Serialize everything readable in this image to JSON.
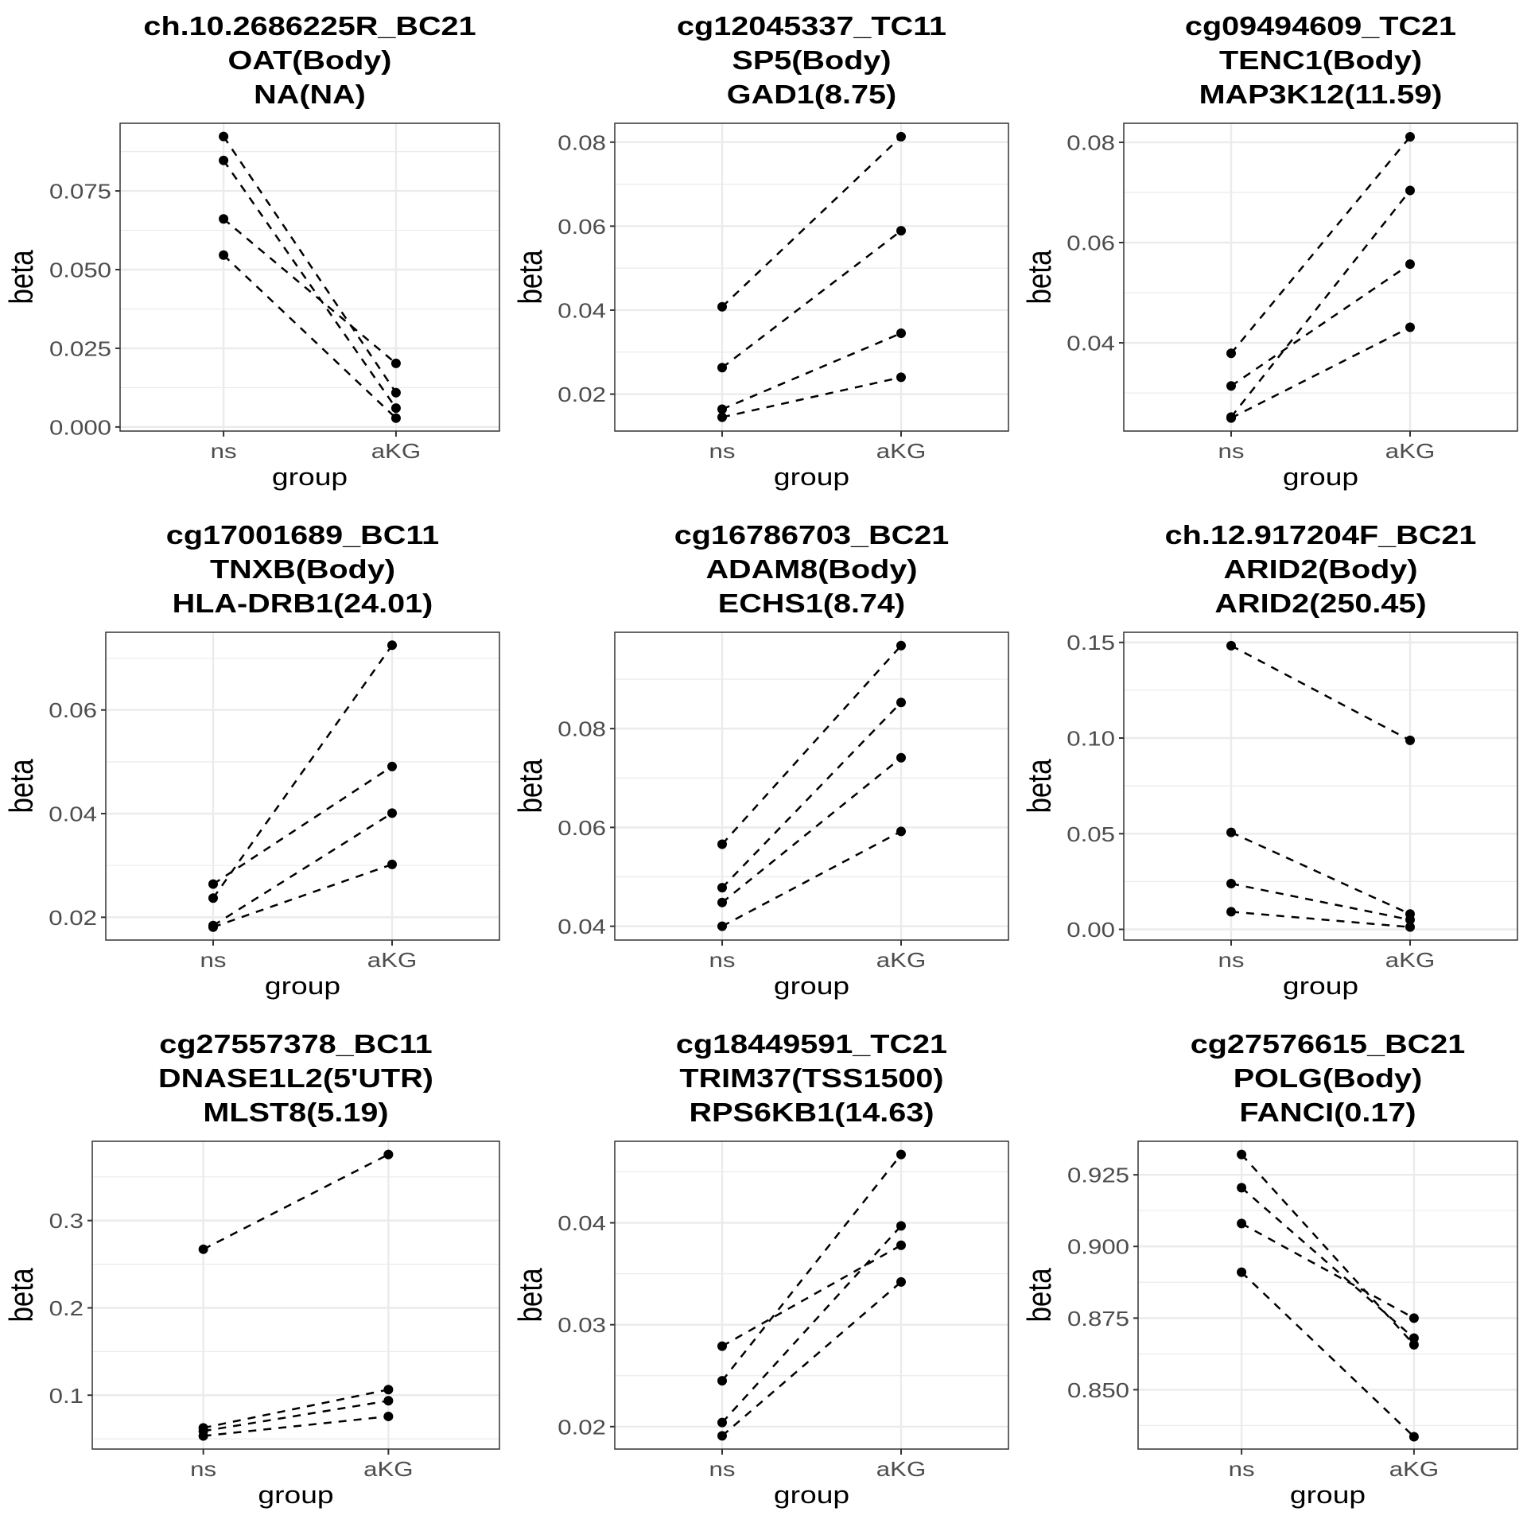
{
  "figure": {
    "style": {
      "point_color": "#000000",
      "line_color": "#000000",
      "grid_color": "#EBEBEB",
      "frame_color": "#333333",
      "tick_label_color": "#4D4D4D"
    }
  },
  "chart_data": [
    {
      "type": "line",
      "title": [
        "ch.10.2686225R_BC21",
        "OAT(Body)",
        "NA(NA)"
      ],
      "xlabel": "group",
      "ylabel": "beta",
      "categories": [
        "ns",
        "aKG"
      ],
      "ylim": [
        -0.0013,
        0.0965
      ],
      "yticks": [
        0,
        0.025,
        0.05,
        0.075
      ],
      "ytick_labels": [
        "0.000",
        "0.025",
        "0.050",
        "0.075"
      ],
      "grid": true,
      "series": [
        {
          "values": [
            0.0923,
            0.0109
          ]
        },
        {
          "values": [
            0.0847,
            0.006
          ]
        },
        {
          "values": [
            0.0661,
            0.0202
          ]
        },
        {
          "values": [
            0.0546,
            0.0028
          ]
        }
      ]
    },
    {
      "type": "line",
      "title": [
        "cg12045337_TC11",
        "SP5(Body)",
        "GAD1(8.75)"
      ],
      "xlabel": "group",
      "ylabel": "beta",
      "categories": [
        "ns",
        "aKG"
      ],
      "ylim": [
        0.0112,
        0.0845
      ],
      "yticks": [
        0.02,
        0.04,
        0.06,
        0.08
      ],
      "ytick_labels": [
        "0.02",
        "0.04",
        "0.06",
        "0.08"
      ],
      "grid": true,
      "series": [
        {
          "values": [
            0.0408,
            0.0813
          ]
        },
        {
          "values": [
            0.0263,
            0.0589
          ]
        },
        {
          "values": [
            0.0164,
            0.0345
          ]
        },
        {
          "values": [
            0.0145,
            0.024
          ]
        }
      ]
    },
    {
      "type": "line",
      "title": [
        "cg09494609_TC21",
        "TENC1(Body)",
        "MAP3K12(11.59)"
      ],
      "xlabel": "group",
      "ylabel": "beta",
      "categories": [
        "ns",
        "aKG"
      ],
      "ylim": [
        0.0224,
        0.0838
      ],
      "yticks": [
        0.04,
        0.06,
        0.08
      ],
      "ytick_labels": [
        "0.04",
        "0.06",
        "0.08"
      ],
      "grid": true,
      "series": [
        {
          "values": [
            0.0379,
            0.0811
          ]
        },
        {
          "values": [
            0.0314,
            0.0557
          ]
        },
        {
          "values": [
            0.0252,
            0.0704
          ]
        },
        {
          "values": [
            0.025,
            0.0431
          ]
        }
      ]
    },
    {
      "type": "line",
      "title": [
        "cg17001689_BC11",
        "TNXB(Body)",
        "HLA-DRB1(24.01)"
      ],
      "xlabel": "group",
      "ylabel": "beta",
      "categories": [
        "ns",
        "aKG"
      ],
      "ylim": [
        0.0156,
        0.075
      ],
      "yticks": [
        0.02,
        0.04,
        0.06
      ],
      "ytick_labels": [
        "0.02",
        "0.04",
        "0.06"
      ],
      "grid": true,
      "series": [
        {
          "values": [
            0.0237,
            0.0725
          ]
        },
        {
          "values": [
            0.0264,
            0.0491
          ]
        },
        {
          "values": [
            0.0184,
            0.0401
          ]
        },
        {
          "values": [
            0.0181,
            0.0302
          ]
        }
      ]
    },
    {
      "type": "line",
      "title": [
        "cg16786703_BC21",
        "ADAM8(Body)",
        "ECHS1(8.74)"
      ],
      "xlabel": "group",
      "ylabel": "beta",
      "categories": [
        "ns",
        "aKG"
      ],
      "ylim": [
        0.0372,
        0.0995
      ],
      "yticks": [
        0.04,
        0.06,
        0.08
      ],
      "ytick_labels": [
        "0.04",
        "0.06",
        "0.08"
      ],
      "grid": true,
      "series": [
        {
          "values": [
            0.0566,
            0.0968
          ]
        },
        {
          "values": [
            0.0478,
            0.0853
          ]
        },
        {
          "values": [
            0.0448,
            0.0741
          ]
        },
        {
          "values": [
            0.04,
            0.0592
          ]
        }
      ]
    },
    {
      "type": "line",
      "title": [
        "ch.12.917204F_BC21",
        "ARID2(Body)",
        "ARID2(250.45)"
      ],
      "xlabel": "group",
      "ylabel": "beta",
      "categories": [
        "ns",
        "aKG"
      ],
      "ylim": [
        -0.0056,
        0.1553
      ],
      "yticks": [
        0,
        0.05,
        0.1,
        0.15
      ],
      "ytick_labels": [
        "0.00",
        "0.05",
        "0.10",
        "0.15"
      ],
      "grid": true,
      "series": [
        {
          "values": [
            0.1483,
            0.0988
          ]
        },
        {
          "values": [
            0.0507,
            0.008
          ]
        },
        {
          "values": [
            0.0239,
            0.005
          ]
        },
        {
          "values": [
            0.0092,
            0.0012
          ]
        }
      ]
    },
    {
      "type": "line",
      "title": [
        "cg27557378_BC11",
        "DNASE1L2(5'UTR)",
        "MLST8(5.19)"
      ],
      "xlabel": "group",
      "ylabel": "beta",
      "categories": [
        "ns",
        "aKG"
      ],
      "ylim": [
        0.0383,
        0.3908
      ],
      "yticks": [
        0.1,
        0.2,
        0.3
      ],
      "ytick_labels": [
        "0.1",
        "0.2",
        "0.3"
      ],
      "grid": true,
      "series": [
        {
          "values": [
            0.2671,
            0.3757
          ]
        },
        {
          "values": [
            0.0626,
            0.1064
          ]
        },
        {
          "values": [
            0.0589,
            0.0936
          ]
        },
        {
          "values": [
            0.0533,
            0.0757
          ]
        }
      ]
    },
    {
      "type": "line",
      "title": [
        "cg18449591_TC21",
        "TRIM37(TSS1500)",
        "RPS6KB1(14.63)"
      ],
      "xlabel": "group",
      "ylabel": "beta",
      "categories": [
        "ns",
        "aKG"
      ],
      "ylim": [
        0.0178,
        0.048
      ],
      "yticks": [
        0.02,
        0.03,
        0.04
      ],
      "ytick_labels": [
        "0.02",
        "0.03",
        "0.04"
      ],
      "grid": true,
      "series": [
        {
          "values": [
            0.0279,
            0.0378
          ]
        },
        {
          "values": [
            0.0245,
            0.0467
          ]
        },
        {
          "values": [
            0.0204,
            0.0397
          ]
        },
        {
          "values": [
            0.0191,
            0.0342
          ]
        }
      ]
    },
    {
      "type": "line",
      "title": [
        "cg27576615_BC21",
        "POLG(Body)",
        "FANCI(0.17)"
      ],
      "xlabel": "group",
      "ylabel": "beta",
      "categories": [
        "ns",
        "aKG"
      ],
      "ylim": [
        0.8293,
        0.9367
      ],
      "yticks": [
        0.85,
        0.875,
        0.9,
        0.925
      ],
      "ytick_labels": [
        "0.850",
        "0.875",
        "0.900",
        "0.925"
      ],
      "grid": true,
      "series": [
        {
          "values": [
            0.9321,
            0.8657
          ]
        },
        {
          "values": [
            0.9205,
            0.868
          ]
        },
        {
          "values": [
            0.908,
            0.875
          ]
        },
        {
          "values": [
            0.891,
            0.8336
          ]
        }
      ]
    }
  ]
}
